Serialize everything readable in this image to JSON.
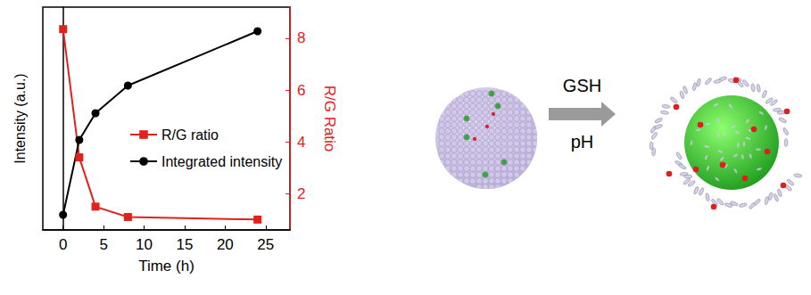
{
  "chart_data": {
    "type": "line",
    "x": [
      0,
      2,
      4,
      8,
      24
    ],
    "xlabel": "Time (h)",
    "ylabel": "Intensity (a.u.)",
    "y2label": "R/G Ratio",
    "xlim": [
      -2.5,
      28
    ],
    "xticks": [
      0,
      5,
      10,
      15,
      20,
      25
    ],
    "ylim": [
      0,
      10
    ],
    "yticks": [],
    "y2lim": [
      0.6,
      9.2
    ],
    "y2ticks": [
      2,
      4,
      6,
      8
    ],
    "grid": false,
    "legend": "right",
    "series": [
      {
        "name": "R/G ratio",
        "color": "#e3211c",
        "marker": "square",
        "axis": "y2",
        "values": [
          8.35,
          3.4,
          1.5,
          1.1,
          1.0
        ]
      },
      {
        "name": "Integrated intensity",
        "color": "#000000",
        "marker": "circle",
        "values": [
          0.68,
          4.04,
          5.24,
          6.48,
          8.92
        ]
      }
    ]
  },
  "diagram": {
    "arrow_labels": [
      "GSH",
      "pH"
    ]
  }
}
